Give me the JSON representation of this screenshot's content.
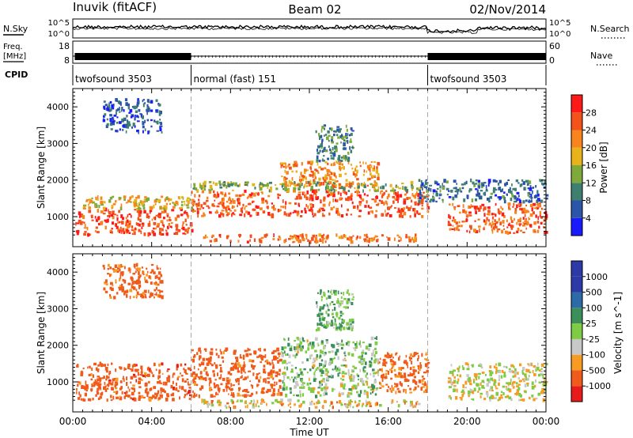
{
  "header": {
    "station": "Inuvik (fitACF)",
    "beam": "Beam 02",
    "date": "02/Nov/2014"
  },
  "noise_panel": {
    "left_label": "N.Sky",
    "left_ticks": [
      "10^5",
      "10^0"
    ],
    "right_label": "N.Search",
    "right_ticks": [
      "10^5",
      "10^0"
    ]
  },
  "freq_panel": {
    "left_label_1": "Freq.",
    "left_label_2": "[MHz]",
    "left_ticks": [
      "18",
      "8"
    ],
    "right_label": "Nave",
    "right_ticks": [
      "60",
      "0"
    ]
  },
  "cpid_panel": {
    "label": "CPID",
    "segments": [
      {
        "name": "twofsound 3503",
        "start_hour": 0,
        "end_hour": 6
      },
      {
        "name": "normal (fast) 151",
        "start_hour": 6,
        "end_hour": 18
      },
      {
        "name": "twofsound 3503",
        "start_hour": 18,
        "end_hour": 24
      }
    ]
  },
  "xaxis": {
    "label": "Time UT",
    "ticks": [
      "00:00",
      "04:00",
      "08:00",
      "12:00",
      "16:00",
      "20:00",
      "00:00"
    ]
  },
  "colors": {
    "power": [
      "#1a1aff",
      "#2b55a8",
      "#3e7f70",
      "#7faa3a",
      "#e8b21a",
      "#f7841d",
      "#f5511a",
      "#ff1a1a"
    ],
    "velocity": [
      "#e81b1b",
      "#f05a1a",
      "#f79b22",
      "#c8c8c8",
      "#7dcc43",
      "#3c8f5a",
      "#2c6aa8",
      "#2b3aa6"
    ]
  },
  "chart_data": [
    {
      "type": "heatmap",
      "title": "Power",
      "ylabel": "Slant Range [km]",
      "xlabel": "Time UT",
      "x_range_hours": [
        0,
        24
      ],
      "ylim": [
        180,
        4500
      ],
      "yticks": [
        "1000",
        "2000",
        "3000",
        "4000"
      ],
      "colorbar": {
        "label": "Power [dB]",
        "ticks": [
          "4",
          "8",
          "12",
          "16",
          "20",
          "24",
          "28"
        ],
        "range": [
          0,
          32
        ]
      },
      "features": [
        {
          "t0": 0.1,
          "t1": 6.0,
          "r0": 500,
          "r1": 1200,
          "value": 27
        },
        {
          "t0": 0.5,
          "t1": 6.0,
          "r0": 1200,
          "r1": 1550,
          "value": 18
        },
        {
          "t0": 6.0,
          "t1": 18.0,
          "r0": 1000,
          "r1": 1700,
          "value": 26
        },
        {
          "t0": 6.0,
          "t1": 18.0,
          "r0": 1700,
          "r1": 1950,
          "value": 14
        },
        {
          "t0": 10.5,
          "t1": 15.5,
          "r0": 1800,
          "r1": 2500,
          "value": 22
        },
        {
          "t0": 12.3,
          "t1": 14.2,
          "r0": 2500,
          "r1": 3500,
          "value": 10
        },
        {
          "t0": 6.5,
          "t1": 17.5,
          "r0": 300,
          "r1": 500,
          "value": 24
        },
        {
          "t0": 19.0,
          "t1": 24.0,
          "r0": 550,
          "r1": 1350,
          "value": 25
        },
        {
          "t0": 17.5,
          "t1": 24.0,
          "r0": 1400,
          "r1": 2000,
          "value": 8
        },
        {
          "t0": 1.5,
          "t1": 4.5,
          "r0": 3300,
          "r1": 4200,
          "value": 6
        }
      ]
    },
    {
      "type": "heatmap",
      "title": "Velocity",
      "ylabel": "Slant Range [km]",
      "xlabel": "Time UT",
      "x_range_hours": [
        0,
        24
      ],
      "ylim": [
        180,
        4500
      ],
      "yticks": [
        "1000",
        "2000",
        "3000",
        "4000"
      ],
      "colorbar": {
        "label": "Velocity [m s^-1]",
        "ticks": [
          "1000",
          "500",
          "100",
          "25",
          "-25",
          "-100",
          "-500",
          "-1000"
        ]
      },
      "features": [
        {
          "t0": 0.1,
          "t1": 6.0,
          "r0": 500,
          "r1": 1500,
          "value": -300
        },
        {
          "t0": 6.0,
          "t1": 10.5,
          "r0": 600,
          "r1": 1900,
          "value": -250
        },
        {
          "t0": 10.5,
          "t1": 15.5,
          "r0": 600,
          "r1": 2200,
          "value": 60
        },
        {
          "t0": 12.3,
          "t1": 14.2,
          "r0": 2400,
          "r1": 3500,
          "value": 100
        },
        {
          "t0": 15.5,
          "t1": 18.0,
          "r0": 700,
          "r1": 1800,
          "value": -150
        },
        {
          "t0": 19.0,
          "t1": 24.0,
          "r0": 500,
          "r1": 1500,
          "value": 0
        },
        {
          "t0": 6.5,
          "t1": 17.5,
          "r0": 300,
          "r1": 500,
          "value": -30
        },
        {
          "t0": 1.5,
          "t1": 4.5,
          "r0": 3300,
          "r1": 4200,
          "value": -200
        }
      ]
    }
  ]
}
